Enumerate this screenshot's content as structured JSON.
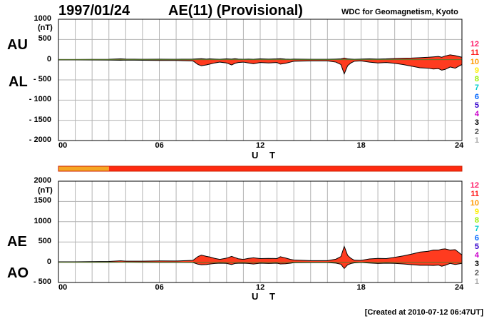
{
  "header": {
    "date": "1997/01/24",
    "index_title": "AE(11) (Provisional)",
    "institution": "WDC for Geomagnetism, Kyoto"
  },
  "footer": {
    "created": "[Created at 2010-07-12 06:47UT]"
  },
  "panel_labels": {
    "au": "AU",
    "al": "AL",
    "ae": "AE",
    "ao": "AO"
  },
  "unit": "(nT)",
  "xlabel": "U T",
  "x_ticks": [
    "00",
    "06",
    "12",
    "18",
    "24"
  ],
  "top_y_ticks": [
    "1000",
    "500",
    "0",
    "- 500",
    "- 1000",
    "- 1500",
    "- 2000"
  ],
  "bottom_y_ticks": [
    "2000",
    "1500",
    "1000",
    "500",
    "0",
    "- 500"
  ],
  "station_levels": [
    "12",
    "11",
    "10",
    "9",
    "8",
    "7",
    "6",
    "5",
    "4",
    "3",
    "2",
    "1"
  ],
  "colors": {
    "fill": "#ff3b1f",
    "level_12": "#ff1a66",
    "level_11": "#ff1a1a",
    "level_10": "#ff9900",
    "level_9": "#ffee00",
    "level_8": "#99ee00",
    "level_7": "#00cccc",
    "level_6": "#0066ff",
    "level_5": "#3300cc",
    "level_4": "#cc00cc",
    "level_3": "#000000",
    "level_2": "#555555",
    "level_1": "#aaaaaa",
    "status_bar_early": "#f5a623",
    "status_bar_main": "#ff2a10"
  },
  "status_bar": {
    "segments": [
      {
        "from_hour": 0,
        "to_hour": 3,
        "station_count": 10
      },
      {
        "from_hour": 3,
        "to_hour": 24,
        "station_count": 11
      }
    ]
  },
  "chart_data": [
    {
      "type": "area",
      "title": "AU / AL",
      "ylabel": "(nT)",
      "xlabel": "U T",
      "xlim": [
        0,
        24
      ],
      "ylim": [
        -2000,
        1000
      ],
      "grid": true,
      "x_hours": [
        0,
        1,
        2,
        3,
        3.7,
        4,
        5,
        6,
        7,
        8,
        8.3,
        8.5,
        8.8,
        9,
        9.3,
        9.6,
        10,
        10.3,
        10.5,
        10.7,
        11,
        11.3,
        11.6,
        12,
        12.5,
        13,
        13.2,
        13.5,
        13.8,
        14,
        15,
        16,
        16.5,
        16.8,
        17.0,
        17.2,
        17.4,
        17.6,
        18,
        18.5,
        19,
        19.5,
        20,
        20.5,
        21,
        21.5,
        22,
        22.3,
        22.6,
        22.8,
        23,
        23.3,
        23.6,
        24
      ],
      "series": [
        {
          "name": "AU",
          "values": [
            5,
            5,
            8,
            10,
            20,
            15,
            10,
            12,
            10,
            15,
            20,
            25,
            15,
            20,
            15,
            10,
            20,
            15,
            25,
            15,
            10,
            15,
            10,
            20,
            15,
            20,
            25,
            15,
            10,
            15,
            10,
            10,
            15,
            20,
            40,
            20,
            15,
            10,
            15,
            20,
            15,
            20,
            30,
            35,
            40,
            50,
            60,
            70,
            80,
            60,
            90,
            120,
            100,
            60
          ]
        },
        {
          "name": "AL",
          "values": [
            -5,
            -5,
            -8,
            -10,
            -15,
            -10,
            -15,
            -20,
            -20,
            -30,
            -120,
            -150,
            -130,
            -110,
            -80,
            -60,
            -80,
            -130,
            -90,
            -70,
            -60,
            -80,
            -100,
            -70,
            -80,
            -70,
            -110,
            -90,
            -60,
            -40,
            -30,
            -30,
            -60,
            -120,
            -350,
            -150,
            -80,
            -40,
            -30,
            -60,
            -80,
            -70,
            -90,
            -120,
            -160,
            -200,
            -210,
            -230,
            -220,
            -260,
            -240,
            -180,
            -210,
            -120
          ]
        }
      ]
    },
    {
      "type": "area",
      "title": "AE / AO",
      "ylabel": "(nT)",
      "xlabel": "U T",
      "xlim": [
        0,
        24
      ],
      "ylim": [
        -500,
        2000
      ],
      "grid": true,
      "x_hours": [
        0,
        1,
        2,
        3,
        3.7,
        4,
        5,
        6,
        7,
        8,
        8.3,
        8.5,
        8.8,
        9,
        9.3,
        9.6,
        10,
        10.3,
        10.5,
        10.7,
        11,
        11.3,
        11.6,
        12,
        12.5,
        13,
        13.2,
        13.5,
        13.8,
        14,
        15,
        16,
        16.5,
        16.8,
        17.0,
        17.2,
        17.4,
        17.6,
        18,
        18.5,
        19,
        19.5,
        20,
        20.5,
        21,
        21.5,
        22,
        22.3,
        22.6,
        22.8,
        23,
        23.3,
        23.6,
        24
      ],
      "series": [
        {
          "name": "AE",
          "values": [
            10,
            10,
            16,
            20,
            35,
            25,
            25,
            32,
            30,
            45,
            140,
            175,
            145,
            130,
            95,
            70,
            100,
            145,
            115,
            85,
            70,
            95,
            110,
            90,
            95,
            90,
            135,
            105,
            70,
            55,
            40,
            40,
            75,
            140,
            390,
            170,
            95,
            50,
            45,
            80,
            95,
            90,
            120,
            155,
            200,
            250,
            270,
            300,
            300,
            320,
            330,
            300,
            310,
            180
          ]
        },
        {
          "name": "AO",
          "values": [
            0,
            0,
            0,
            0,
            2,
            2,
            -2,
            -4,
            -5,
            -7,
            -50,
            -62,
            -57,
            -45,
            -32,
            -25,
            -30,
            -57,
            -32,
            -27,
            -25,
            -32,
            -45,
            -25,
            -32,
            -25,
            -42,
            -37,
            -25,
            -12,
            -10,
            -10,
            -22,
            -50,
            -155,
            -65,
            -32,
            -15,
            -7,
            -20,
            -32,
            -25,
            -30,
            -42,
            -60,
            -75,
            -75,
            -80,
            -70,
            -100,
            -75,
            -30,
            -55,
            -30
          ]
        }
      ]
    }
  ]
}
